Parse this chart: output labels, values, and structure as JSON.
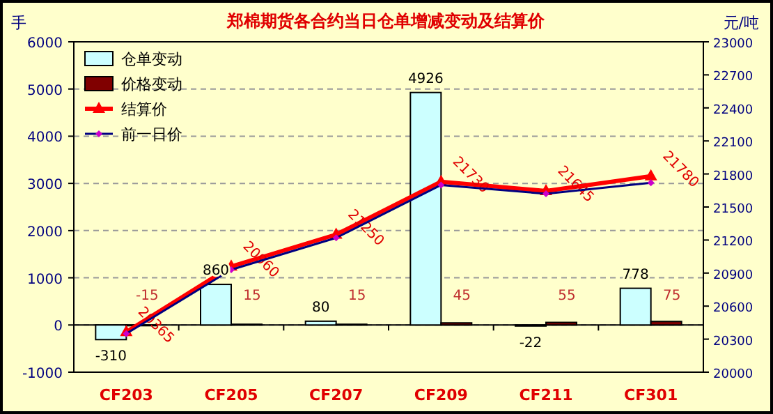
{
  "chart_data": {
    "type": "bar",
    "title": "郑棉期货各合约当日仓单增减变动及结算价",
    "ylabel": "手",
    "y2label": "元/吨",
    "categories": [
      "CF203",
      "CF205",
      "CF207",
      "CF209",
      "CF211",
      "CF301"
    ],
    "series": [
      {
        "name": "仓单变动",
        "type": "bar",
        "color": "#ccffff",
        "values": [
          -310,
          860,
          80,
          4926,
          -22,
          778
        ],
        "value_labels": [
          "-310",
          "860",
          "80",
          "4926",
          "-22",
          "778"
        ]
      },
      {
        "name": "价格变动",
        "type": "bar",
        "color": "#800000",
        "values": [
          -15,
          15,
          15,
          45,
          55,
          75
        ],
        "value_labels": [
          "-15",
          "15",
          "15",
          "45",
          "55",
          "75"
        ]
      },
      {
        "name": "结算价",
        "type": "line",
        "axis": "y2",
        "color": "#ff0000",
        "marker": "triangle",
        "values": [
          20365,
          20960,
          21250,
          21730,
          21645,
          21780
        ],
        "value_labels": [
          "20365",
          "20960",
          "21250",
          "21730",
          "21645",
          "21780"
        ]
      },
      {
        "name": "前一日价",
        "type": "line",
        "axis": "y2",
        "color": "#000080",
        "marker": "diamond",
        "values": [
          20350,
          20930,
          21220,
          21700,
          21620,
          21720
        ]
      }
    ],
    "ylim": [
      -1000,
      6000
    ],
    "yticks": [
      -1000,
      0,
      1000,
      2000,
      3000,
      4000,
      5000,
      6000
    ],
    "y2lim": [
      20000,
      23000
    ],
    "y2ticks": [
      20000,
      20300,
      20600,
      20900,
      21200,
      21500,
      21800,
      22100,
      22400,
      22700,
      23000
    ],
    "grid": "y",
    "legend": "top left"
  }
}
